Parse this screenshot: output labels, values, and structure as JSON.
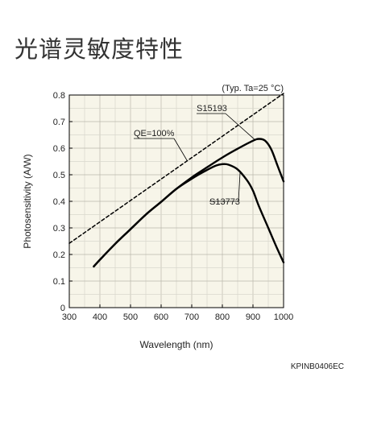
{
  "page_title": "光谱灵敏度特性",
  "figure_code": "KPINB0406EC",
  "chart_data": {
    "type": "line",
    "condition_note": "(Typ. Ta=25 °C)",
    "xlabel": "Wavelength (nm)",
    "ylabel": "Photosensitivity (A/W)",
    "xlim": [
      300,
      1000
    ],
    "ylim": [
      0,
      0.8
    ],
    "x_ticks": [
      300,
      400,
      500,
      600,
      700,
      800,
      900,
      1000
    ],
    "y_ticks": [
      0,
      0.1,
      0.2,
      0.3,
      0.4,
      0.5,
      0.6,
      0.7,
      0.8
    ],
    "x_tick_labels": [
      "300",
      "400",
      "500",
      "600",
      "700",
      "800",
      "900",
      "1000"
    ],
    "y_tick_labels": [
      "0",
      "0.1",
      "0.2",
      "0.3",
      "0.4",
      "0.5",
      "0.6",
      "0.7",
      "0.8"
    ],
    "grid": true,
    "background_color": "#f7f5e9",
    "series": [
      {
        "name": "S15193",
        "style": "solid",
        "color": "#000000",
        "x": [
          380,
          400,
          450,
          500,
          550,
          600,
          650,
          700,
          750,
          800,
          850,
          900,
          920,
          940,
          960,
          980,
          1000
        ],
        "y": [
          0.155,
          0.18,
          0.24,
          0.295,
          0.35,
          0.398,
          0.447,
          0.49,
          0.528,
          0.565,
          0.598,
          0.628,
          0.635,
          0.628,
          0.595,
          0.535,
          0.475
        ]
      },
      {
        "name": "S13773",
        "style": "solid",
        "color": "#000000",
        "x": [
          380,
          400,
          450,
          500,
          550,
          600,
          650,
          700,
          750,
          780,
          800,
          820,
          850,
          880,
          900,
          920,
          950,
          980,
          1000
        ],
        "y": [
          0.155,
          0.18,
          0.24,
          0.295,
          0.35,
          0.398,
          0.447,
          0.485,
          0.518,
          0.535,
          0.54,
          0.538,
          0.52,
          0.48,
          0.44,
          0.38,
          0.3,
          0.22,
          0.17
        ]
      },
      {
        "name": "QE=100%",
        "style": "dashed",
        "color": "#000000",
        "x": [
          300,
          1000
        ],
        "y": [
          0.242,
          0.806
        ]
      }
    ]
  }
}
